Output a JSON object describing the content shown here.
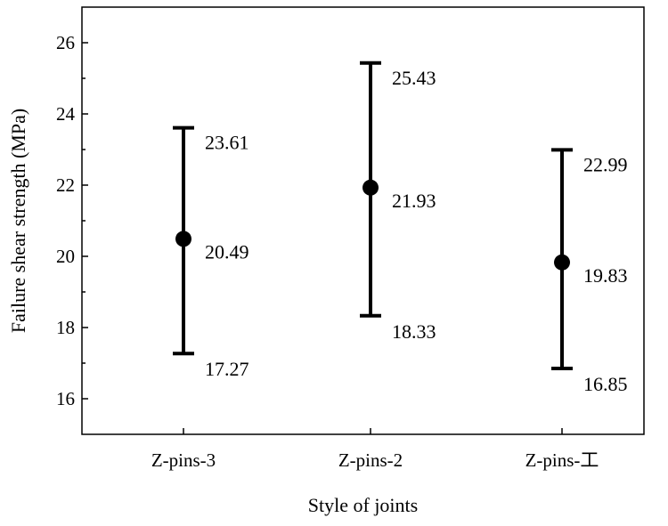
{
  "chart_data": {
    "type": "scatter",
    "title": "",
    "xlabel": "Style of joints",
    "ylabel": "Failure shear strength (MPa)",
    "ylim": [
      15,
      27
    ],
    "yticks": [
      16,
      18,
      20,
      22,
      24,
      26
    ],
    "y_tick_labels": [
      "16",
      "18",
      "20",
      "22",
      "24",
      "26"
    ],
    "grid": false,
    "legend": "none",
    "categories": [
      "Z-pins-3",
      "Z-pins-2",
      "Z-pins-工"
    ],
    "points": [
      {
        "category": "Z-pins-3",
        "mean": 20.49,
        "max": 23.61,
        "min": 17.27,
        "mean_label": "20.49",
        "max_label": "23.61",
        "min_label": "17.27"
      },
      {
        "category": "Z-pins-2",
        "mean": 21.93,
        "max": 25.43,
        "min": 18.33,
        "mean_label": "21.93",
        "max_label": "25.43",
        "min_label": "18.33"
      },
      {
        "category": "Z-pins-工",
        "mean": 19.83,
        "max": 22.99,
        "min": 16.85,
        "mean_label": "19.83",
        "max_label": "22.99",
        "min_label": "16.85"
      }
    ],
    "color": "#000000"
  }
}
